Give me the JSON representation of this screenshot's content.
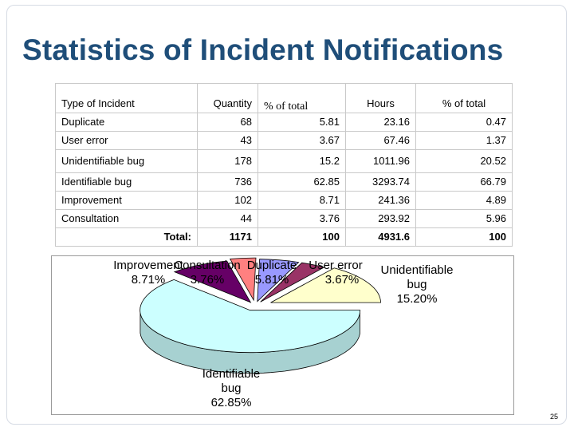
{
  "title": "Statistics of Incident Notifications",
  "page_number": "25",
  "table": {
    "headers": [
      "Type of Incident",
      "Quantity",
      "% of total",
      "Hours",
      "% of total"
    ],
    "rows": [
      {
        "type": "Duplicate",
        "quantity": "68",
        "pct_qty": "5.81",
        "hours": "23.16",
        "pct_hours": "0.47"
      },
      {
        "type": "User error",
        "quantity": "43",
        "pct_qty": "3.67",
        "hours": "67.46",
        "pct_hours": "1.37"
      },
      {
        "type": "Unidentifiable bug",
        "quantity": "178",
        "pct_qty": "15.2",
        "hours": "1011.96",
        "pct_hours": "20.52"
      },
      {
        "type": "Identifiable bug",
        "quantity": "736",
        "pct_qty": "62.85",
        "hours": "3293.74",
        "pct_hours": "66.79"
      },
      {
        "type": "Improvement",
        "quantity": "102",
        "pct_qty": "8.71",
        "hours": "241.36",
        "pct_hours": "4.89"
      },
      {
        "type": "Consultation",
        "quantity": "44",
        "pct_qty": "3.76",
        "hours": "293.92",
        "pct_hours": "5.96"
      }
    ],
    "total": {
      "label": "Total:",
      "quantity": "1171",
      "pct_qty": "100",
      "hours": "4931.6",
      "pct_hours": "100"
    }
  },
  "chart_data": {
    "type": "pie",
    "three_d": true,
    "slices": [
      {
        "name": "Duplicate",
        "value": 5.81,
        "label": "5.81%",
        "color": "#9999ff"
      },
      {
        "name": "User error",
        "value": 3.67,
        "label": "3.67%",
        "color": "#993366"
      },
      {
        "name": "Unidentifiable bug",
        "value": 15.2,
        "label": "15.20%",
        "color": "#ffffcc"
      },
      {
        "name": "Identifiable bug",
        "value": 62.85,
        "label": "62.85%",
        "color": "#ccffff"
      },
      {
        "name": "Improvement",
        "value": 8.71,
        "label": "8.71%",
        "color": "#660066"
      },
      {
        "name": "Consultation",
        "value": 3.76,
        "label": "3.76%",
        "color": "#ff8080"
      }
    ]
  }
}
